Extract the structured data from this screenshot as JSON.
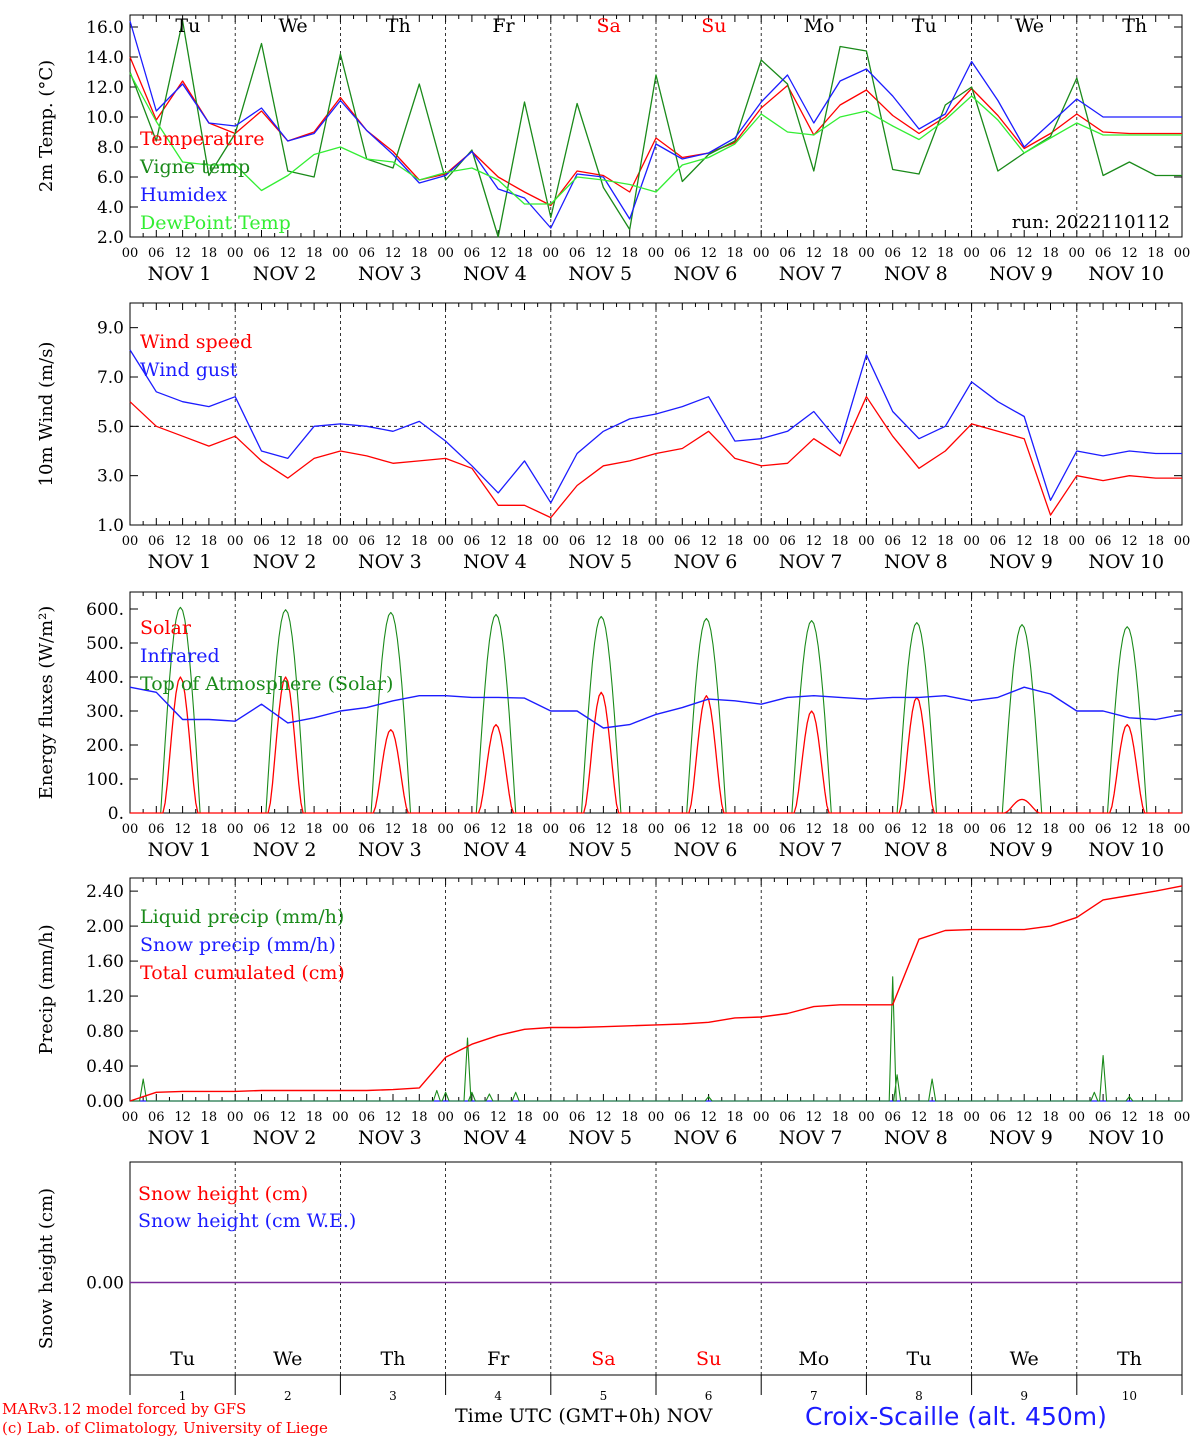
{
  "chart_data": [
    {
      "type": "line",
      "ylabel": "2m Temp. (°C)",
      "ylim": [
        2.0,
        16.8
      ],
      "yticks": [
        "2.0",
        "4.0",
        "6.0",
        "8.0",
        "10.0",
        "12.0",
        "14.0",
        "16.0"
      ],
      "annotation": "run: 2022110112",
      "x_hours": [
        0,
        6,
        12,
        18,
        24,
        30,
        36,
        42,
        48,
        54,
        60,
        66,
        72,
        78,
        84,
        90,
        96,
        102,
        108,
        114,
        120,
        126,
        132,
        138,
        144,
        150,
        156,
        162,
        168,
        174,
        180,
        186,
        192,
        198,
        204,
        210,
        216,
        222,
        228,
        234,
        240
      ],
      "series": [
        {
          "name": "Temperature",
          "color": "#ff0000",
          "values": [
            14.0,
            9.8,
            12.4,
            9.6,
            8.9,
            10.4,
            8.4,
            9.0,
            11.3,
            9.1,
            7.7,
            5.8,
            6.2,
            7.7,
            6.0,
            5.0,
            4.1,
            6.4,
            6.1,
            5.0,
            8.6,
            7.3,
            7.6,
            8.3,
            10.6,
            12.1,
            8.8,
            10.8,
            11.8,
            10.1,
            8.9,
            10.0,
            11.9,
            10.1,
            7.9,
            8.9,
            10.2,
            9.0,
            8.9,
            8.9,
            8.9
          ]
        },
        {
          "name": "Vigne temp",
          "color": "#1a8a1a",
          "values": [
            13.0,
            8.4,
            16.4,
            6.1,
            8.9,
            14.9,
            6.4,
            6.0,
            14.2,
            7.2,
            6.6,
            12.2,
            5.8,
            7.8,
            1.5,
            11.0,
            3.3,
            10.9,
            5.3,
            2.5,
            12.8,
            5.7,
            7.5,
            8.4,
            13.8,
            12.2,
            6.4,
            14.7,
            14.4,
            6.5,
            6.2,
            10.8,
            12.0,
            6.4,
            7.6,
            8.7,
            12.6,
            6.1,
            7.0,
            6.1,
            6.1
          ]
        },
        {
          "name": "Humidex",
          "color": "#1c1cff",
          "values": [
            16.4,
            10.4,
            12.2,
            9.6,
            9.4,
            10.6,
            8.4,
            8.9,
            11.1,
            9.1,
            7.5,
            5.6,
            6.1,
            7.7,
            5.2,
            4.6,
            2.6,
            6.2,
            6.0,
            3.2,
            8.2,
            7.2,
            7.6,
            8.6,
            11.0,
            12.8,
            9.6,
            12.4,
            13.2,
            11.4,
            9.2,
            10.2,
            13.7,
            11.1,
            8.0,
            9.6,
            11.2,
            10.0,
            10.0,
            10.0,
            10.0
          ]
        },
        {
          "name": "DewPoint Temp",
          "color": "#33ee33",
          "values": [
            12.9,
            9.7,
            7.0,
            6.8,
            6.8,
            5.1,
            6.1,
            7.5,
            8.0,
            7.2,
            7.0,
            5.8,
            6.3,
            6.6,
            5.8,
            4.2,
            4.2,
            6.0,
            5.8,
            5.5,
            5.0,
            6.8,
            7.3,
            8.2,
            10.2,
            9.0,
            8.8,
            10.0,
            10.4,
            9.4,
            8.5,
            9.8,
            11.4,
            9.8,
            7.6,
            8.6,
            9.6,
            8.8,
            8.8,
            8.8,
            8.8
          ]
        }
      ]
    },
    {
      "type": "line",
      "ylabel": "10m Wind (m/s)",
      "ylim": [
        1.0,
        10.0
      ],
      "yticks": [
        "1.0",
        "3.0",
        "5.0",
        "7.0",
        "9.0"
      ],
      "reference_line": 5.0,
      "x_hours": [
        0,
        6,
        12,
        18,
        24,
        30,
        36,
        42,
        48,
        54,
        60,
        66,
        72,
        78,
        84,
        90,
        96,
        102,
        108,
        114,
        120,
        126,
        132,
        138,
        144,
        150,
        156,
        162,
        168,
        174,
        180,
        186,
        192,
        198,
        204,
        210,
        216,
        222,
        228,
        234,
        240
      ],
      "series": [
        {
          "name": "Wind speed",
          "color": "#ff0000",
          "values": [
            6.0,
            5.0,
            4.6,
            4.2,
            4.6,
            3.6,
            2.9,
            3.7,
            4.0,
            3.8,
            3.5,
            3.6,
            3.7,
            3.3,
            1.8,
            1.8,
            1.3,
            2.6,
            3.4,
            3.6,
            3.9,
            4.1,
            4.8,
            3.7,
            3.4,
            3.5,
            4.5,
            3.8,
            6.2,
            4.6,
            3.3,
            4.0,
            5.1,
            4.8,
            4.5,
            1.4,
            3.0,
            2.8,
            3.0,
            2.9,
            2.9
          ]
        },
        {
          "name": "Wind gust",
          "color": "#1c1cff",
          "values": [
            8.1,
            6.4,
            6.0,
            5.8,
            6.2,
            4.0,
            3.7,
            5.0,
            5.1,
            5.0,
            4.8,
            5.2,
            4.4,
            3.4,
            2.3,
            3.6,
            1.9,
            3.9,
            4.8,
            5.3,
            5.5,
            5.8,
            6.2,
            4.4,
            4.5,
            4.8,
            5.6,
            4.3,
            7.9,
            5.6,
            4.5,
            5.0,
            6.8,
            6.0,
            5.4,
            2.0,
            4.0,
            3.8,
            4.0,
            3.9,
            3.9
          ]
        }
      ]
    },
    {
      "type": "line",
      "ylabel": "Energy fluxes (W/m²)",
      "ylim": [
        0,
        650
      ],
      "yticks": [
        "0.",
        "100.",
        "200.",
        "300.",
        "400.",
        "500.",
        "600."
      ],
      "series": [
        {
          "name": "Solar",
          "color": "#ff0000",
          "daily_peak": [
            400,
            400,
            245,
            260,
            355,
            345,
            300,
            340,
            40,
            260
          ]
        },
        {
          "name": "Infrared",
          "color": "#1c1cff",
          "values_every_6h": [
            370,
            355,
            275,
            275,
            270,
            320,
            265,
            280,
            300,
            310,
            330,
            345,
            345,
            340,
            340,
            338,
            300,
            300,
            250,
            260,
            290,
            310,
            335,
            330,
            320,
            340,
            345,
            340,
            335,
            340,
            340,
            345,
            330,
            340,
            370,
            350,
            300,
            300,
            280,
            275,
            290
          ]
        },
        {
          "name": "Top of Atmosphere (Solar)",
          "color": "#1a8a1a",
          "daily_peak": [
            605,
            598,
            590,
            584,
            578,
            572,
            566,
            560,
            554,
            548
          ]
        }
      ]
    },
    {
      "type": "line",
      "ylabel": "Precip (mm/h)",
      "ylim": [
        0,
        2.55
      ],
      "yticks": [
        "0.00",
        "0.40",
        "0.80",
        "1.20",
        "1.60",
        "2.00",
        "2.40"
      ],
      "series": [
        {
          "name": "Liquid precip (mm/h)",
          "color": "#1a8a1a",
          "spikes": [
            [
              3,
              0.25
            ],
            [
              70,
              0.12
            ],
            [
              72,
              0.1
            ],
            [
              77,
              0.72
            ],
            [
              78,
              0.1
            ],
            [
              82,
              0.08
            ],
            [
              88,
              0.1
            ],
            [
              132,
              0.05
            ],
            [
              174,
              1.42
            ],
            [
              175,
              0.3
            ],
            [
              183,
              0.25
            ],
            [
              220,
              0.1
            ],
            [
              222,
              0.52
            ],
            [
              228,
              0.05
            ]
          ]
        },
        {
          "name": "Snow precip (mm/h)",
          "color": "#1c1cff",
          "values": [
            0
          ]
        },
        {
          "name": "Total cumulated (cm)",
          "color": "#ff0000",
          "values": [
            0.0,
            0.1,
            0.11,
            0.11,
            0.11,
            0.12,
            0.12,
            0.12,
            0.12,
            0.12,
            0.13,
            0.15,
            0.5,
            0.65,
            0.75,
            0.82,
            0.84,
            0.84,
            0.85,
            0.86,
            0.87,
            0.88,
            0.9,
            0.95,
            0.96,
            1.0,
            1.08,
            1.1,
            1.1,
            1.1,
            1.85,
            1.95,
            1.96,
            1.96,
            1.96,
            2.0,
            2.1,
            2.3,
            2.35,
            2.4,
            2.46
          ]
        }
      ]
    },
    {
      "type": "line",
      "ylabel": "Snow height (cm)",
      "yticks": [
        "0.00"
      ],
      "series": [
        {
          "name": "Snow height (cm)",
          "color": "#ff0000",
          "values": [
            0
          ]
        },
        {
          "name": "Snow height (cm W.E.)",
          "color": "#1c1cff",
          "values": [
            0
          ]
        }
      ]
    }
  ],
  "axis": {
    "hour_ticks": [
      "00",
      "06",
      "12",
      "18"
    ],
    "end_tick": "00",
    "month": "NOV",
    "dates": [
      "1",
      "2",
      "3",
      "4",
      "5",
      "6",
      "7",
      "8",
      "9",
      "10"
    ],
    "weekdays": [
      "Tu",
      "We",
      "Th",
      "Fr",
      "Sa",
      "Su",
      "Mo",
      "Tu",
      "We",
      "Th"
    ],
    "weekday_colors": [
      "#000000",
      "#000000",
      "#000000",
      "#000000",
      "#ff0000",
      "#ff0000",
      "#000000",
      "#000000",
      "#000000",
      "#000000"
    ],
    "bottom_label": "Time UTC (GMT+0h)",
    "bottom_month": "NOV"
  },
  "footer": {
    "model": "MARv3.12 model forced by GFS",
    "lab": "(c) Lab. of Climatology, University of Liege",
    "station": "Croix-Scaille (alt. 450m)"
  }
}
